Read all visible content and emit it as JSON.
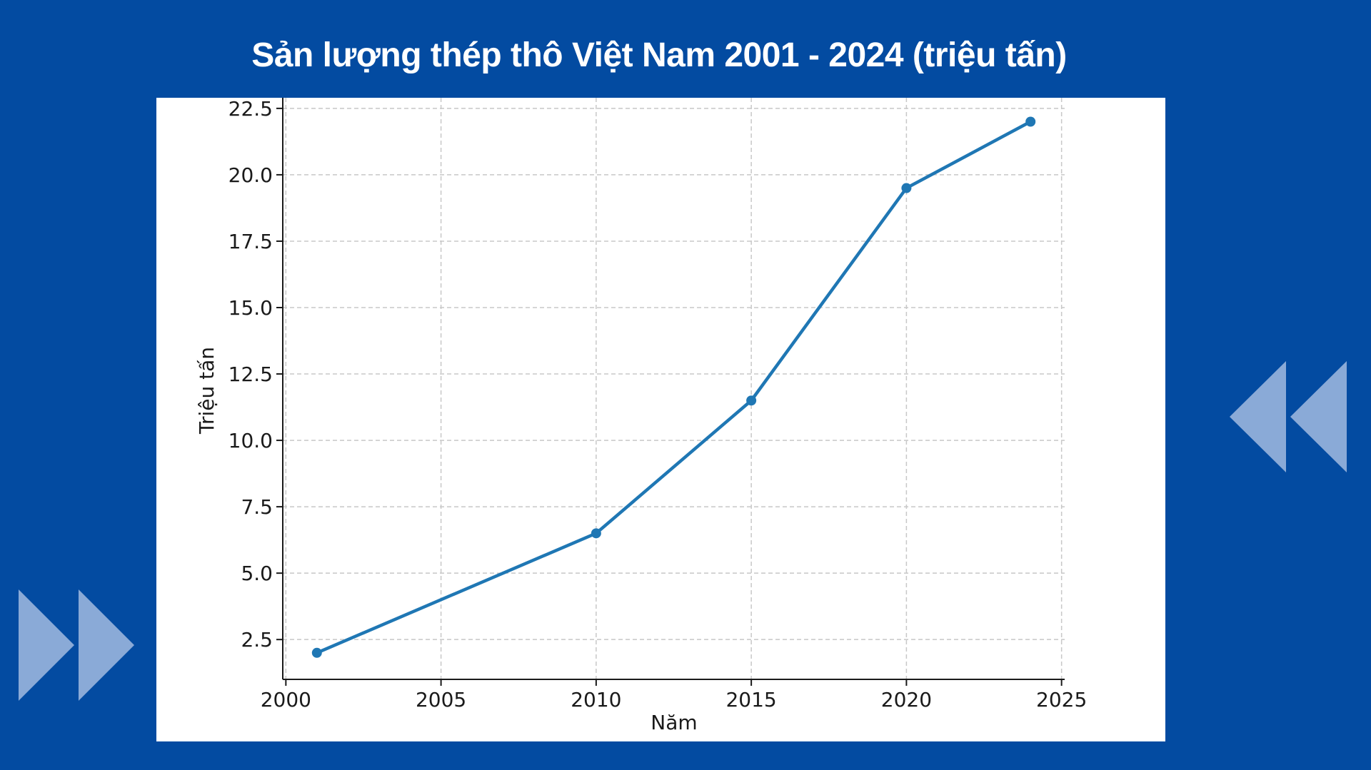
{
  "page": {
    "title": "Sản lượng thép thô Việt Nam 2001 - 2024 (triệu tấn)",
    "background_color": "#034ba1",
    "decorations": [
      "rewind-arrows-icon",
      "fast-forward-arrows-icon"
    ]
  },
  "chart_data": {
    "type": "line",
    "title": "",
    "xlabel": "Năm",
    "ylabel": "Triệu tấn",
    "xlim": [
      1999.9,
      2025.1
    ],
    "ylim": [
      1.0,
      22.9
    ],
    "x_ticks": [
      2000,
      2005,
      2010,
      2015,
      2020,
      2025
    ],
    "x_tick_labels": [
      "2000",
      "2005",
      "2010",
      "2015",
      "2020",
      "2025"
    ],
    "y_ticks": [
      2.5,
      5.0,
      7.5,
      10.0,
      12.5,
      15.0,
      17.5,
      20.0,
      22.5
    ],
    "y_tick_labels": [
      "2.5",
      "5.0",
      "7.5",
      "10.0",
      "12.5",
      "15.0",
      "17.5",
      "20.0",
      "22.5"
    ],
    "grid": true,
    "legend": "none",
    "series": [
      {
        "color": "#1f77b4",
        "marker": "circle",
        "x": [
          2001,
          2010,
          2015,
          2020,
          2024
        ],
        "y": [
          2.0,
          6.5,
          11.5,
          19.5,
          22.0
        ]
      }
    ]
  }
}
